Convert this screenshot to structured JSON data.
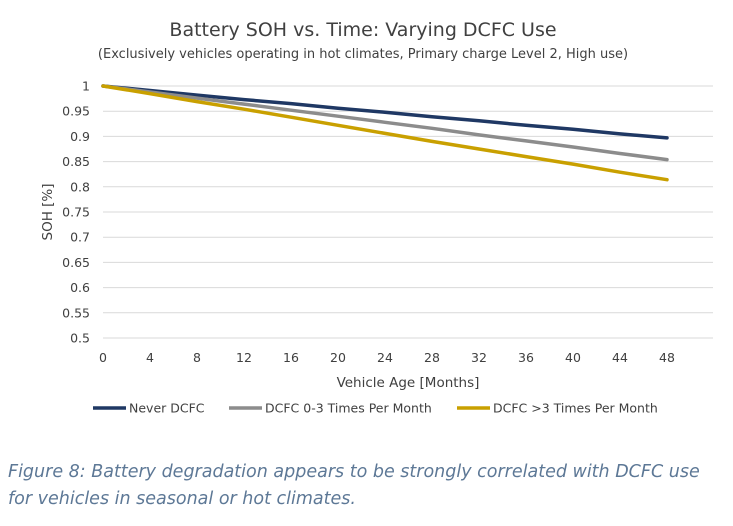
{
  "chart_data": {
    "type": "line",
    "title": "Battery SOH vs. Time: Varying DCFC Use",
    "subtitle": "(Exclusively vehicles operating in hot climates, Primary charge Level 2, High use)",
    "xlabel": "Vehicle Age [Months]",
    "ylabel": "SOH [%]",
    "x_ticks": [
      0,
      4,
      8,
      12,
      16,
      20,
      24,
      28,
      32,
      36,
      40,
      44,
      48
    ],
    "y_ticks": [
      0.5,
      0.55,
      0.6,
      0.65,
      0.7,
      0.75,
      0.8,
      0.85,
      0.9,
      0.95,
      1
    ],
    "y_tick_labels": [
      "0.5",
      "0.55",
      "0.6",
      "0.65",
      "0.7",
      "0.75",
      "0.8",
      "0.85",
      "0.9",
      "0.95",
      "1"
    ],
    "xlim": [
      0,
      48
    ],
    "ylim": [
      0.5,
      1
    ],
    "grid": "horizontal",
    "legend_position": "bottom",
    "series": [
      {
        "name": "Never DCFC",
        "color": "#1f3864",
        "x": [
          0,
          4,
          8,
          12,
          16,
          20,
          24,
          28,
          32,
          36,
          40,
          44,
          48
        ],
        "y": [
          1.0,
          0.991,
          0.982,
          0.973,
          0.965,
          0.956,
          0.948,
          0.939,
          0.931,
          0.922,
          0.914,
          0.905,
          0.897
        ]
      },
      {
        "name": "DCFC 0-3 Times Per Month",
        "color": "#8c8c8c",
        "x": [
          0,
          4,
          8,
          12,
          16,
          20,
          24,
          28,
          32,
          36,
          40,
          44,
          48
        ],
        "y": [
          1.0,
          0.988,
          0.976,
          0.964,
          0.952,
          0.94,
          0.928,
          0.916,
          0.903,
          0.891,
          0.879,
          0.866,
          0.854
        ]
      },
      {
        "name": "DCFC >3 Times Per Month",
        "color": "#c9a000",
        "x": [
          0,
          4,
          8,
          12,
          16,
          20,
          24,
          28,
          32,
          36,
          40,
          44,
          48
        ],
        "y": [
          1.0,
          0.985,
          0.969,
          0.954,
          0.938,
          0.922,
          0.906,
          0.89,
          0.875,
          0.86,
          0.845,
          0.829,
          0.814
        ]
      }
    ]
  },
  "caption": "Figure 8: Battery degradation appears to be strongly correlated with DCFC use for vehicles in seasonal or hot climates."
}
